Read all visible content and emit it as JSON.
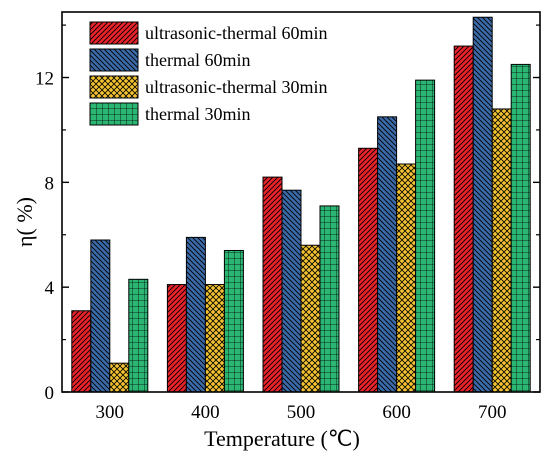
{
  "chart_data": {
    "type": "bar",
    "title": "",
    "xlabel": "Temperature (℃)",
    "ylabel": "η( %)",
    "categories": [
      "300",
      "400",
      "500",
      "600",
      "700"
    ],
    "series": [
      {
        "name": "ultrasonic-thermal 60min",
        "values": [
          3.1,
          4.1,
          8.2,
          9.3,
          13.2
        ],
        "color": "#e8232a",
        "pattern": "diag-right"
      },
      {
        "name": "thermal 60min",
        "values": [
          5.8,
          5.9,
          7.7,
          10.5,
          14.3
        ],
        "color": "#3a6aa8",
        "pattern": "diag-left"
      },
      {
        "name": "ultrasonic-thermal 30min",
        "values": [
          1.1,
          4.1,
          5.6,
          8.7,
          10.8
        ],
        "color": "#f2c232",
        "pattern": "crosshatch"
      },
      {
        "name": "thermal 30min",
        "values": [
          4.3,
          5.4,
          7.1,
          11.9,
          12.5
        ],
        "color": "#2bb673",
        "pattern": "grid"
      }
    ],
    "ylim": [
      0,
      14.5
    ],
    "yticks": [
      "0",
      "4",
      "8",
      "12"
    ],
    "legend_position": "top-left",
    "grid": false
  }
}
